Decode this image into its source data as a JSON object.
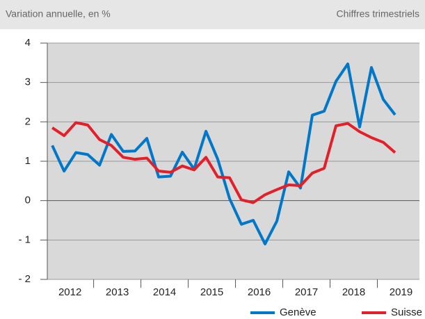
{
  "chart_data": {
    "type": "line",
    "subtitle": "Variation annuelle, en %",
    "note": "Chiffres trimestriels",
    "x": [
      2012.125,
      2012.375,
      2012.625,
      2012.875,
      2013.125,
      2013.375,
      2013.625,
      2013.875,
      2014.125,
      2014.375,
      2014.625,
      2014.875,
      2015.125,
      2015.375,
      2015.625,
      2015.875,
      2016.125,
      2016.375,
      2016.625,
      2016.875,
      2017.125,
      2017.375,
      2017.625,
      2017.875,
      2018.125,
      2018.375,
      2018.625,
      2018.875,
      2019.125,
      2019.375
    ],
    "series": [
      {
        "name": "Genève",
        "color": "#0077c8",
        "values": [
          1.4,
          0.75,
          1.22,
          1.17,
          0.9,
          1.68,
          1.25,
          1.26,
          1.58,
          0.6,
          0.62,
          1.23,
          0.8,
          1.76,
          1.05,
          0.05,
          -0.6,
          -0.5,
          -1.1,
          -0.52,
          0.73,
          0.32,
          2.17,
          2.27,
          3.03,
          3.47,
          1.87,
          3.38,
          2.57,
          2.18
        ]
      },
      {
        "name": "Suisse",
        "color": "#e3202a",
        "values": [
          1.85,
          1.65,
          1.98,
          1.92,
          1.55,
          1.4,
          1.1,
          1.05,
          1.08,
          0.75,
          0.72,
          0.88,
          0.78,
          1.1,
          0.6,
          0.58,
          0.02,
          -0.05,
          0.15,
          0.28,
          0.4,
          0.38,
          0.7,
          0.82,
          1.9,
          1.96,
          1.75,
          1.6,
          1.48,
          1.22
        ]
      }
    ],
    "xlim": [
      2012.02,
      2019.89
    ],
    "xticks": [
      {
        "value": 2012.5,
        "label": "2012"
      },
      {
        "value": 2013.5,
        "label": "2013"
      },
      {
        "value": 2014.5,
        "label": "2014"
      },
      {
        "value": 2015.5,
        "label": "2015"
      },
      {
        "value": 2016.5,
        "label": "2016"
      },
      {
        "value": 2017.5,
        "label": "2017"
      },
      {
        "value": 2018.5,
        "label": "2018"
      },
      {
        "value": 2019.5,
        "label": "2019"
      }
    ],
    "year_bounds": [
      2013,
      2014,
      2015,
      2016,
      2017,
      2018,
      2019
    ],
    "ylim": [
      -2,
      4
    ],
    "yticks": [
      {
        "value": -2,
        "label": "- 2"
      },
      {
        "value": -1,
        "label": "- 1"
      },
      0,
      1,
      2,
      3,
      4
    ],
    "grid": true
  }
}
